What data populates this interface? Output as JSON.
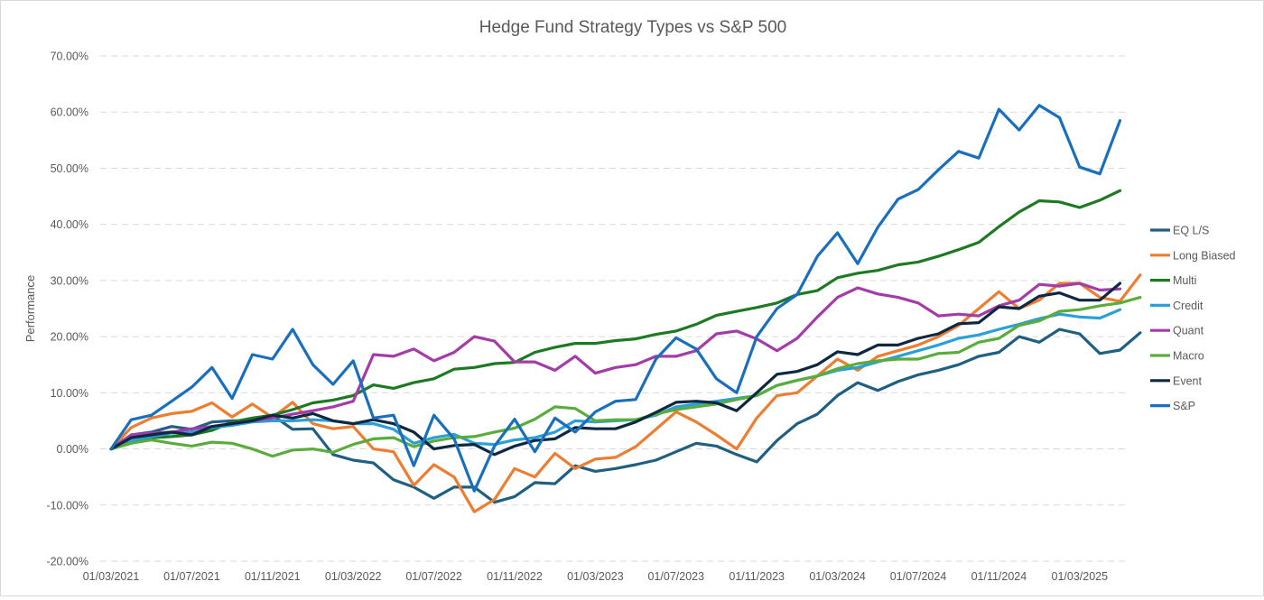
{
  "chart_data": {
    "type": "line",
    "title": "Hedge Fund Strategy Types vs S&P 500",
    "xlabel": "",
    "ylabel": "Performance",
    "ylim": [
      -0.2,
      0.7
    ],
    "yticks": [
      0.7,
      0.6,
      0.5,
      0.4,
      0.3,
      0.2,
      0.1,
      0.0,
      -0.1,
      -0.2
    ],
    "ytick_labels": [
      "70.00%",
      "60.00%",
      "50.00%",
      "40.00%",
      "30.00%",
      "20.00%",
      "10.00%",
      "0.00%",
      "-10.00%",
      "-20.00%"
    ],
    "xticks": [
      0,
      4,
      8,
      12,
      16,
      20,
      24,
      28,
      32,
      36,
      40,
      44,
      48
    ],
    "xtick_labels": [
      "01/03/2021",
      "01/07/2021",
      "01/11/2021",
      "01/03/2022",
      "01/07/2022",
      "01/11/2022",
      "01/03/2023",
      "01/07/2023",
      "01/11/2023",
      "01/03/2024",
      "01/07/2024",
      "01/11/2024",
      "01/03/2025"
    ],
    "grid": "horizontal dashed",
    "legend_position": "right",
    "series": [
      {
        "name": "EQ L/S",
        "color": "#1f5f82",
        "values": [
          0,
          0.025,
          0.03,
          0.04,
          0.035,
          0.048,
          0.05,
          0.05,
          0.06,
          0.035,
          0.036,
          -0.01,
          -0.02,
          -0.025,
          -0.055,
          -0.068,
          -0.088,
          -0.068,
          -0.068,
          -0.095,
          -0.085,
          -0.06,
          -0.062,
          -0.03,
          -0.04,
          -0.035,
          -0.028,
          -0.02,
          -0.005,
          0.01,
          0.005,
          -0.01,
          -0.023,
          0.015,
          0.045,
          0.062,
          0.095,
          0.118,
          0.104,
          0.12,
          0.132,
          0.14,
          0.15,
          0.165,
          0.172,
          0.2,
          0.19,
          0.213,
          0.205,
          0.17,
          0.176,
          0.207
        ]
      },
      {
        "name": "Long Biased",
        "color": "#ed7d31",
        "values": [
          0,
          0.038,
          0.055,
          0.063,
          0.067,
          0.082,
          0.057,
          0.08,
          0.056,
          0.083,
          0.045,
          0.036,
          0.04,
          0.0,
          -0.005,
          -0.065,
          -0.028,
          -0.05,
          -0.112,
          -0.09,
          -0.035,
          -0.05,
          -0.008,
          -0.035,
          -0.018,
          -0.015,
          0.004,
          0.035,
          0.066,
          0.048,
          0.025,
          0.0,
          0.055,
          0.095,
          0.1,
          0.13,
          0.16,
          0.14,
          0.165,
          0.175,
          0.185,
          0.2,
          0.22,
          0.25,
          0.28,
          0.25,
          0.265,
          0.295,
          0.295,
          0.27,
          0.263,
          0.31
        ]
      },
      {
        "name": "Multi",
        "color": "#1e7a22",
        "values": [
          0,
          0.012,
          0.02,
          0.022,
          0.025,
          0.033,
          0.048,
          0.055,
          0.06,
          0.07,
          0.082,
          0.087,
          0.095,
          0.114,
          0.108,
          0.118,
          0.125,
          0.142,
          0.145,
          0.152,
          0.154,
          0.172,
          0.181,
          0.188,
          0.188,
          0.193,
          0.196,
          0.204,
          0.21,
          0.222,
          0.238,
          0.245,
          0.252,
          0.26,
          0.275,
          0.282,
          0.305,
          0.313,
          0.318,
          0.328,
          0.333,
          0.343,
          0.355,
          0.368,
          0.396,
          0.422,
          0.442,
          0.44,
          0.43,
          0.443,
          0.46
        ]
      },
      {
        "name": "Credit",
        "color": "#2a9fd8",
        "values": [
          0,
          0.015,
          0.022,
          0.028,
          0.03,
          0.038,
          0.042,
          0.048,
          0.05,
          0.05,
          0.052,
          0.05,
          0.045,
          0.045,
          0.035,
          0.01,
          0.02,
          0.026,
          0.01,
          0.008,
          0.016,
          0.02,
          0.03,
          0.05,
          0.048,
          0.05,
          0.052,
          0.06,
          0.075,
          0.08,
          0.085,
          0.09,
          0.095,
          0.113,
          0.122,
          0.13,
          0.14,
          0.145,
          0.155,
          0.165,
          0.175,
          0.185,
          0.197,
          0.203,
          0.213,
          0.222,
          0.232,
          0.24,
          0.235,
          0.233,
          0.248
        ]
      },
      {
        "name": "Quant",
        "color": "#a33ca8",
        "values": [
          0,
          0.025,
          0.028,
          0.03,
          0.036,
          0.04,
          0.045,
          0.05,
          0.055,
          0.062,
          0.068,
          0.075,
          0.085,
          0.168,
          0.165,
          0.178,
          0.157,
          0.172,
          0.2,
          0.192,
          0.155,
          0.155,
          0.14,
          0.165,
          0.135,
          0.145,
          0.15,
          0.165,
          0.165,
          0.175,
          0.205,
          0.21,
          0.196,
          0.175,
          0.197,
          0.235,
          0.27,
          0.287,
          0.276,
          0.27,
          0.26,
          0.237,
          0.24,
          0.237,
          0.255,
          0.265,
          0.293,
          0.29,
          0.295,
          0.283,
          0.285
        ]
      },
      {
        "name": "Macro",
        "color": "#5aad3c",
        "values": [
          0,
          0.01,
          0.016,
          0.01,
          0.005,
          0.012,
          0.01,
          0.0,
          -0.013,
          -0.002,
          0.0,
          -0.006,
          0.008,
          0.018,
          0.02,
          0.004,
          0.014,
          0.02,
          0.022,
          0.03,
          0.037,
          0.053,
          0.075,
          0.072,
          0.05,
          0.052,
          0.052,
          0.062,
          0.07,
          0.075,
          0.08,
          0.088,
          0.095,
          0.113,
          0.122,
          0.13,
          0.143,
          0.152,
          0.157,
          0.16,
          0.16,
          0.17,
          0.172,
          0.19,
          0.197,
          0.22,
          0.228,
          0.245,
          0.248,
          0.255,
          0.26,
          0.27
        ]
      },
      {
        "name": "Event",
        "color": "#0e2841",
        "values": [
          0,
          0.02,
          0.025,
          0.03,
          0.025,
          0.04,
          0.045,
          0.05,
          0.06,
          0.055,
          0.063,
          0.05,
          0.045,
          0.052,
          0.045,
          0.03,
          0.0,
          0.006,
          0.008,
          -0.01,
          0.005,
          0.015,
          0.018,
          0.038,
          0.036,
          0.036,
          0.048,
          0.065,
          0.083,
          0.085,
          0.082,
          0.068,
          0.1,
          0.133,
          0.138,
          0.15,
          0.173,
          0.168,
          0.185,
          0.185,
          0.197,
          0.205,
          0.223,
          0.225,
          0.253,
          0.25,
          0.272,
          0.278,
          0.265,
          0.265,
          0.295
        ]
      },
      {
        "name": "S&P",
        "color": "#1a6fbd",
        "values": [
          0,
          0.052,
          0.06,
          0.085,
          0.11,
          0.145,
          0.09,
          0.168,
          0.16,
          0.213,
          0.15,
          0.115,
          0.157,
          0.055,
          0.06,
          -0.03,
          0.06,
          0.018,
          -0.075,
          0.005,
          0.053,
          -0.005,
          0.055,
          0.03,
          0.066,
          0.085,
          0.088,
          0.16,
          0.198,
          0.178,
          0.125,
          0.1,
          0.2,
          0.25,
          0.275,
          0.343,
          0.385,
          0.33,
          0.395,
          0.445,
          0.462,
          0.497,
          0.53,
          0.518,
          0.605,
          0.568,
          0.612,
          0.59,
          0.502,
          0.49,
          0.585
        ]
      }
    ]
  }
}
